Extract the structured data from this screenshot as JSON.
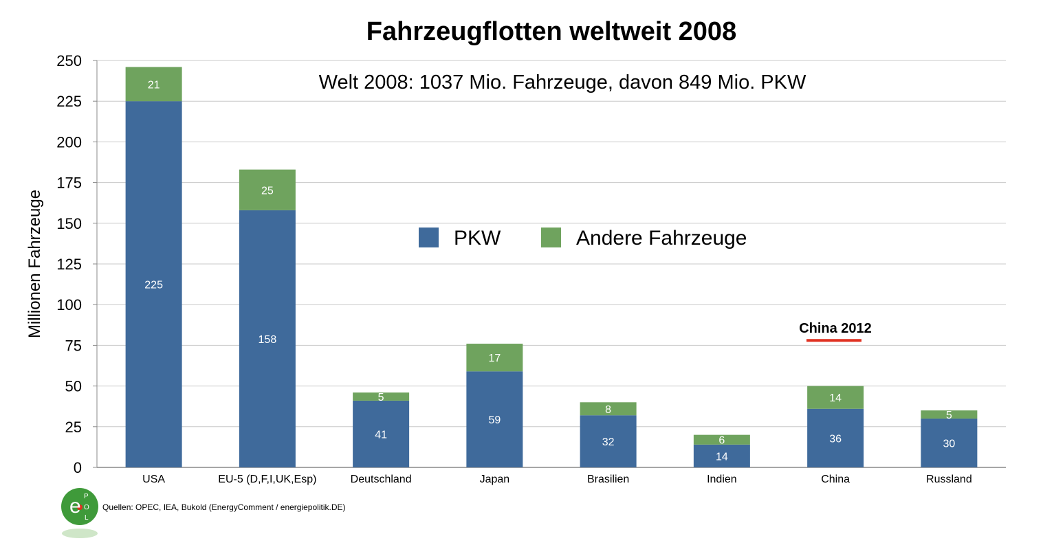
{
  "chart_data": {
    "type": "bar",
    "stacked": true,
    "title": "Fahrzeugflotten weltweit 2008",
    "subtitle": "Welt 2008: 1037 Mio. Fahrzeuge, davon 849 Mio. PKW",
    "xlabel": "",
    "ylabel": "Millionen Fahrzeuge",
    "ylim": [
      0,
      250
    ],
    "yticks": [
      0,
      25,
      50,
      75,
      100,
      125,
      150,
      175,
      200,
      225,
      250
    ],
    "grid": true,
    "legend_position": "center",
    "categories": [
      "USA",
      "EU-5 (D,F,I,UK,Esp)",
      "Deutschland",
      "Japan",
      "Brasilien",
      "Indien",
      "China",
      "Russland"
    ],
    "series": [
      {
        "name": "PKW",
        "color": "#3f6a9b",
        "values": [
          225,
          158,
          41,
          59,
          32,
          14,
          36,
          30
        ]
      },
      {
        "name": "Andere Fahrzeuge",
        "color": "#6fa35e",
        "values": [
          21,
          25,
          5,
          17,
          8,
          6,
          14,
          5
        ]
      }
    ],
    "annotations": [
      {
        "text": "China 2012",
        "value": 78,
        "category": "China",
        "line_color": "#e03020"
      }
    ]
  },
  "source_text": "Quellen: OPEC, IEA, Bukold (EnergyComment / energiepolitik.DE)",
  "logo": {
    "letters": [
      "e",
      "P",
      "O",
      "L"
    ],
    "color": "#3f9a3a"
  },
  "colors": {
    "grid": "#c8c8c8",
    "axis": "#888888"
  }
}
